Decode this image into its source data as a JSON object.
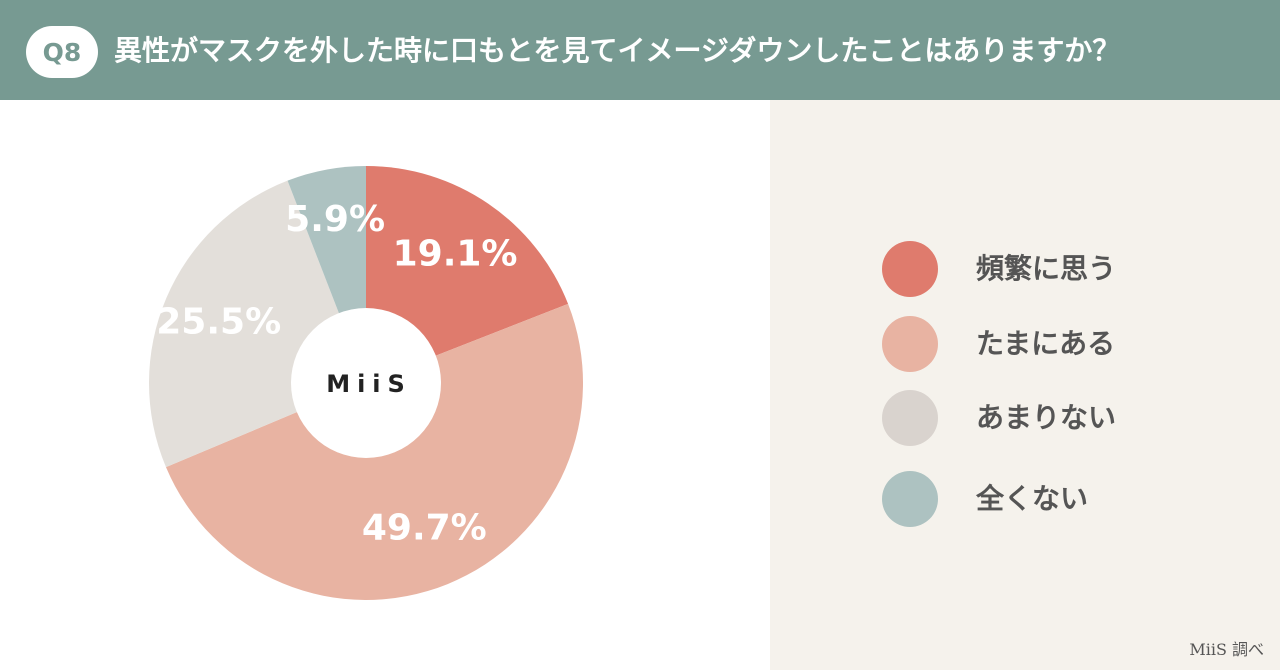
{
  "header": {
    "badge": "Q8",
    "title": "異性がマスクを外した時に口もとを見てイメージダウンしたことはありますか？"
  },
  "chart_data": {
    "type": "pie",
    "donut": true,
    "center_label": "MiiS",
    "categories": [
      "頻繁に思う",
      "たまにある",
      "あまりない",
      "全くない"
    ],
    "values": [
      19.1,
      49.7,
      25.5,
      5.9
    ],
    "value_labels": [
      "19.1%",
      "49.7%",
      "25.5%",
      "5.9%"
    ],
    "colors": [
      "#df7b6d",
      "#e8b3a2",
      "#e3dfda",
      "#adc2c1"
    ],
    "start_angle": "12 o'clock",
    "direction": "clockwise",
    "legend_position": "right"
  },
  "legend": {
    "items": [
      {
        "label": "頻繁に思う",
        "color": "#df7b6d"
      },
      {
        "label": "たまにある",
        "color": "#e8b3a2"
      },
      {
        "label": "あまりない",
        "color": "#d9d3ce"
      },
      {
        "label": "全くない",
        "color": "#adc2c1"
      }
    ]
  },
  "footer": {
    "source": "MiiS 調べ"
  }
}
